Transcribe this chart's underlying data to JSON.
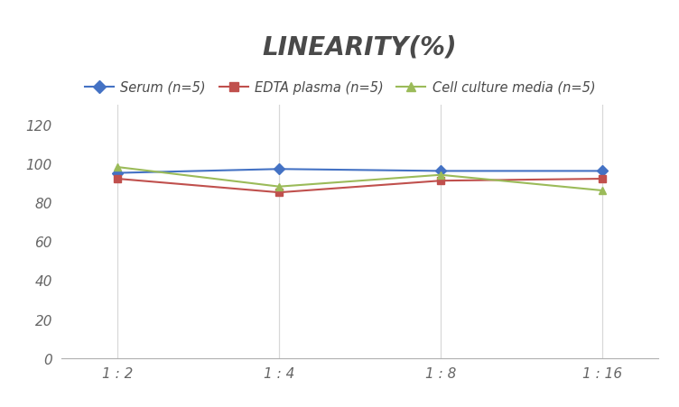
{
  "title": "LINEARITY(%)",
  "x_labels": [
    "1 : 2",
    "1 : 4",
    "1 : 8",
    "1 : 16"
  ],
  "x_positions": [
    0,
    1,
    2,
    3
  ],
  "series": [
    {
      "label": "Serum (n=5)",
      "values": [
        95,
        97,
        96,
        96
      ],
      "color": "#4472C4",
      "marker": "D",
      "linewidth": 1.5
    },
    {
      "label": "EDTA plasma (n=5)",
      "values": [
        92,
        85,
        91,
        92
      ],
      "color": "#C0504D",
      "marker": "s",
      "linewidth": 1.5
    },
    {
      "label": "Cell culture media (n=5)",
      "values": [
        98,
        88,
        94,
        86
      ],
      "color": "#9BBB59",
      "marker": "^",
      "linewidth": 1.5
    }
  ],
  "ylim": [
    0,
    130
  ],
  "yticks": [
    0,
    20,
    40,
    60,
    80,
    100,
    120
  ],
  "background_color": "#ffffff",
  "grid_color": "#d8d8d8",
  "title_fontsize": 20,
  "title_color": "#4a4a4a",
  "legend_fontsize": 10.5,
  "tick_fontsize": 11,
  "tick_color": "#666666"
}
